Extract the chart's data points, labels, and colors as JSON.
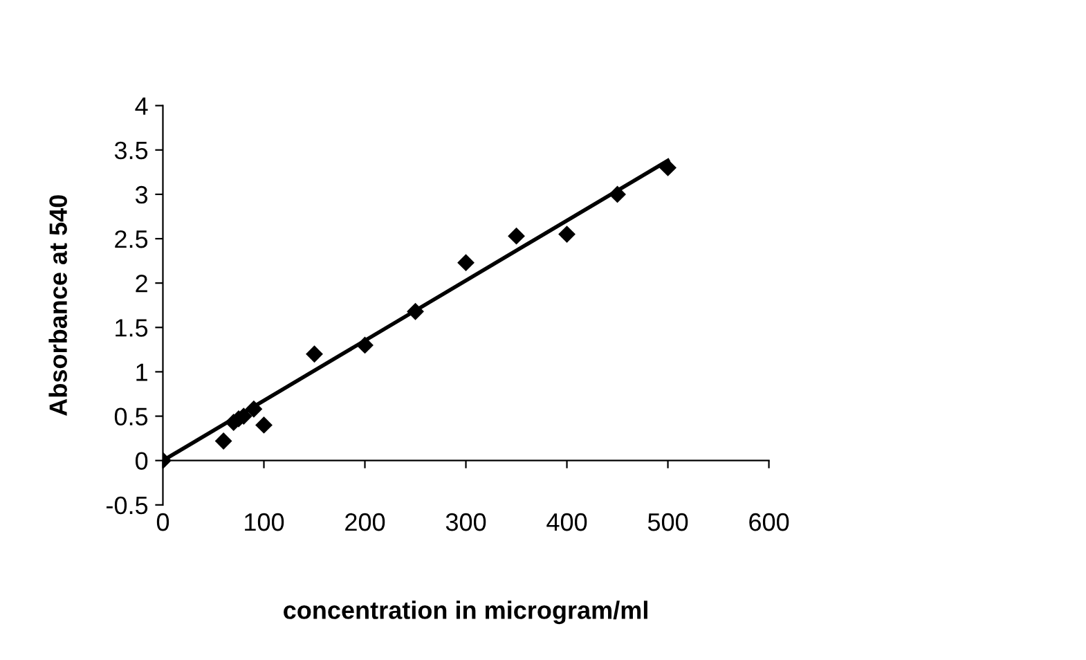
{
  "chart_data": {
    "type": "scatter",
    "xlabel": "concentration in microgram/ml",
    "ylabel": "Absorbance at 540",
    "xlim": [
      0,
      600
    ],
    "xticks": [
      0,
      100,
      200,
      300,
      400,
      500,
      600
    ],
    "ylim": [
      -0.5,
      4
    ],
    "yticks": [
      -0.5,
      0,
      0.5,
      1,
      1.5,
      2,
      2.5,
      3,
      3.5,
      4
    ],
    "grid": false,
    "legend": false,
    "series": [
      {
        "marker": "diamond",
        "color": "#000000",
        "x": [
          0,
          60,
          70,
          75,
          80,
          90,
          100,
          150,
          200,
          250,
          300,
          350,
          400,
          450,
          500
        ],
        "values": [
          0,
          0.22,
          0.43,
          0.47,
          0.5,
          0.58,
          0.4,
          1.2,
          1.3,
          1.68,
          2.23,
          2.53,
          2.55,
          3.0,
          3.3
        ]
      },
      {
        "type": "line",
        "marker": "none",
        "color": "#000000",
        "x": [
          0,
          500
        ],
        "values": [
          0,
          3.38
        ]
      }
    ]
  }
}
